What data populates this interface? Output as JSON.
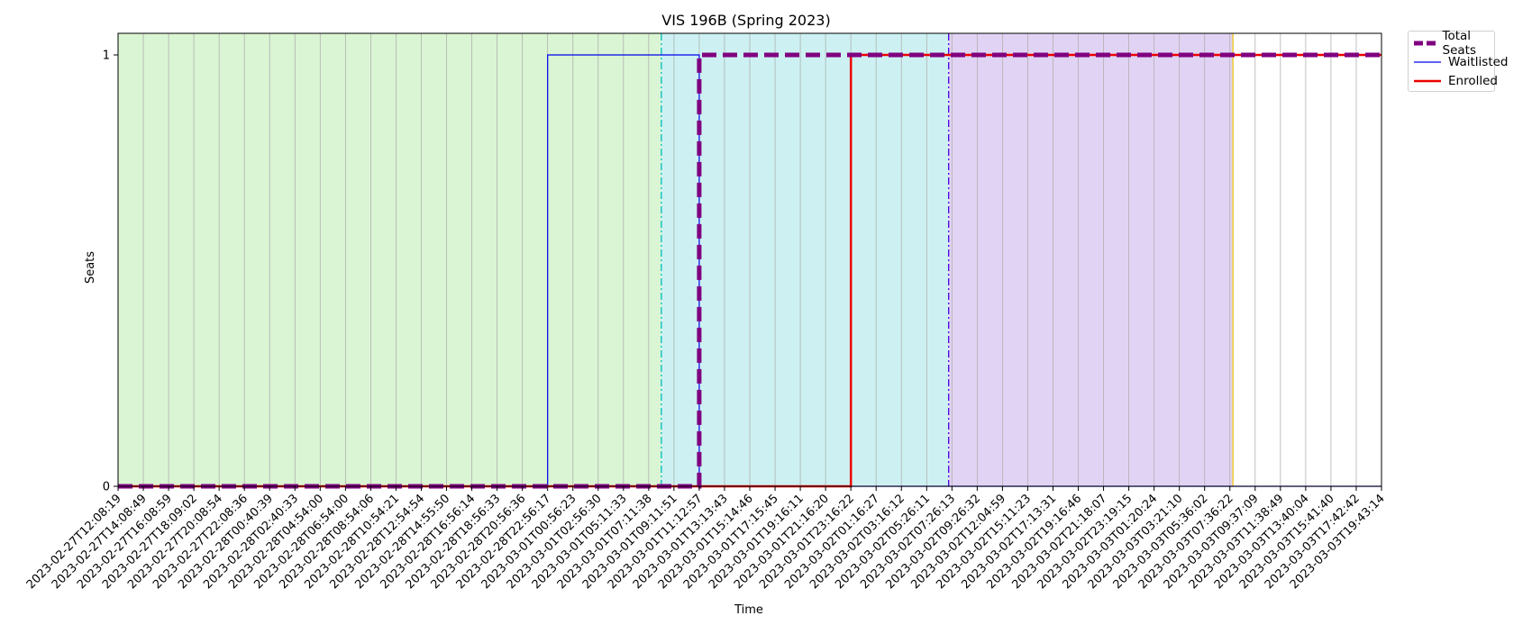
{
  "chart_data": {
    "type": "line",
    "title": "VIS 196B (Spring 2023)",
    "xlabel": "Time",
    "ylabel": "Seats",
    "ylim": [
      0,
      1
    ],
    "yticks": [
      "0",
      "1"
    ],
    "grid": "vertical",
    "legend_position": "outside-top-right",
    "categories": [
      "2023-02-27T12:08:19",
      "2023-02-27T14:08:49",
      "2023-02-27T16:08:59",
      "2023-02-27T18:09:02",
      "2023-02-27T20:08:54",
      "2023-02-27T22:08:36",
      "2023-02-28T00:40:39",
      "2023-02-28T02:40:33",
      "2023-02-28T04:54:00",
      "2023-02-28T06:54:00",
      "2023-02-28T08:54:06",
      "2023-02-28T10:54:21",
      "2023-02-28T12:54:54",
      "2023-02-28T14:55:50",
      "2023-02-28T16:56:14",
      "2023-02-28T18:56:33",
      "2023-02-28T20:56:36",
      "2023-02-28T22:56:17",
      "2023-03-01T00:56:23",
      "2023-03-01T02:56:30",
      "2023-03-01T05:11:33",
      "2023-03-01T07:11:38",
      "2023-03-01T09:11:51",
      "2023-03-01T11:12:57",
      "2023-03-01T13:13:43",
      "2023-03-01T15:14:46",
      "2023-03-01T17:15:45",
      "2023-03-01T19:16:11",
      "2023-03-01T21:16:20",
      "2023-03-01T23:16:22",
      "2023-03-02T01:16:27",
      "2023-03-02T03:16:12",
      "2023-03-02T05:26:11",
      "2023-03-02T07:26:13",
      "2023-03-02T09:26:32",
      "2023-03-02T12:04:59",
      "2023-03-02T15:11:23",
      "2023-03-02T17:13:31",
      "2023-03-02T19:16:46",
      "2023-03-02T21:18:07",
      "2023-03-02T23:19:15",
      "2023-03-03T01:20:24",
      "2023-03-03T03:21:10",
      "2023-03-03T05:36:02",
      "2023-03-03T07:36:22",
      "2023-03-03T09:37:09",
      "2023-03-03T11:38:49",
      "2023-03-03T13:40:04",
      "2023-03-03T15:41:40",
      "2023-03-03T17:42:42",
      "2023-03-03T19:43:14"
    ],
    "series": [
      {
        "name": "Total Seats",
        "color": "#800080",
        "style": "dashed",
        "steps": [
          {
            "x": "2023-02-27T12:08:19",
            "y": 0
          },
          {
            "x": "2023-03-01T11:12:57",
            "y": 0
          },
          {
            "x": "2023-03-01T11:12:57",
            "y": 1
          },
          {
            "x": "2023-03-03T19:43:14",
            "y": 1
          }
        ]
      },
      {
        "name": "Waitlisted",
        "color": "#0000ee",
        "style": "solid",
        "steps": [
          {
            "x": "2023-02-27T12:08:19",
            "y": 0
          },
          {
            "x": "2023-02-28T22:56:17",
            "y": 0
          },
          {
            "x": "2023-02-28T22:56:17",
            "y": 1
          },
          {
            "x": "2023-03-01T11:12:57",
            "y": 1
          },
          {
            "x": "2023-03-01T11:12:57",
            "y": 0
          },
          {
            "x": "2023-03-03T19:43:14",
            "y": 0
          }
        ]
      },
      {
        "name": "Enrolled",
        "color": "#ee0000",
        "style": "solid",
        "steps": [
          {
            "x": "2023-02-27T12:08:19",
            "y": 0
          },
          {
            "x": "2023-03-01T23:16:22",
            "y": 0
          },
          {
            "x": "2023-03-01T23:16:22",
            "y": 1
          },
          {
            "x": "2023-03-03T19:43:14",
            "y": 1
          }
        ]
      }
    ],
    "shaded_periods": [
      {
        "from": "2023-02-27T12:08:19",
        "to": "2023-03-01T07:11:38",
        "to_fraction": 0.5,
        "color": "#d9f5d3"
      },
      {
        "from": "2023-03-01T07:11:38",
        "to": "2023-03-02T05:26:11",
        "to_fraction": 0.87,
        "color": "#cdf1f2"
      },
      {
        "from": "2023-03-02T05:26:11",
        "to": "2023-03-03T07:36:22",
        "to_fraction": 0.12,
        "color": "#e1d3f3"
      }
    ],
    "period_lines": [
      {
        "x": "2023-03-01T07:11:38",
        "x_fraction": 0.5,
        "color": "#00bcbc",
        "style": "dashdot"
      },
      {
        "x": "2023-03-02T05:26:11",
        "x_fraction": 0.87,
        "color": "#4b00e0",
        "style": "dashdot"
      },
      {
        "x": "2023-03-03T07:36:22",
        "x_fraction": 0.12,
        "color": "#f0c419",
        "style": "solid"
      }
    ]
  }
}
